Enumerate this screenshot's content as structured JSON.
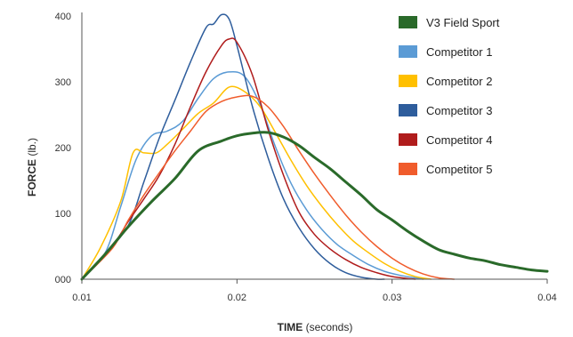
{
  "chart_data": {
    "type": "line",
    "title": "",
    "xlabel": {
      "bold": "TIME",
      "rest": " (seconds)"
    },
    "ylabel": {
      "bold": "FORCE",
      "rest": " (lb.)"
    },
    "xlim": [
      0.01,
      0.04
    ],
    "ylim": [
      0,
      400
    ],
    "x_ticks": [
      0.01,
      0.02,
      0.03,
      0.04
    ],
    "x_tick_labels": [
      "0.01",
      "0.02",
      "0.03",
      "0.04"
    ],
    "y_ticks": [
      0,
      100,
      200,
      300,
      400
    ],
    "y_tick_labels": [
      "000",
      "100",
      "200",
      "300",
      "400"
    ],
    "grid": false,
    "legend_position": "right",
    "series": [
      {
        "name": "V3 Field Sport",
        "color": "#2a6a2a",
        "width": 3,
        "x": [
          0.01,
          0.0115,
          0.013,
          0.0145,
          0.016,
          0.0175,
          0.019,
          0.02,
          0.021,
          0.022,
          0.023,
          0.024,
          0.025,
          0.026,
          0.027,
          0.028,
          0.029,
          0.03,
          0.031,
          0.032,
          0.033,
          0.034,
          0.035,
          0.036,
          0.037,
          0.038,
          0.039,
          0.04
        ],
        "y": [
          0,
          38,
          80,
          118,
          153,
          195,
          210,
          218,
          222,
          223,
          216,
          203,
          185,
          168,
          148,
          128,
          106,
          90,
          73,
          58,
          45,
          38,
          32,
          28,
          22,
          18,
          14,
          12
        ]
      },
      {
        "name": "Competitor 1",
        "color": "#5b9bd5",
        "width": 1.5,
        "x": [
          0.01,
          0.0115,
          0.0125,
          0.0135,
          0.0145,
          0.0155,
          0.0165,
          0.0175,
          0.0185,
          0.0195,
          0.0205,
          0.0215,
          0.0225,
          0.0235,
          0.0245,
          0.0255,
          0.0265,
          0.0275,
          0.0285,
          0.0295,
          0.0305,
          0.0315,
          0.032
        ],
        "y": [
          0,
          40,
          110,
          182,
          218,
          225,
          240,
          275,
          305,
          315,
          308,
          265,
          200,
          145,
          105,
          75,
          52,
          36,
          22,
          12,
          6,
          2,
          0
        ]
      },
      {
        "name": "Competitor 2",
        "color": "#ffc000",
        "width": 1.5,
        "x": [
          0.01,
          0.0112,
          0.0125,
          0.0133,
          0.014,
          0.0148,
          0.0155,
          0.0165,
          0.0175,
          0.0185,
          0.0195,
          0.0205,
          0.0215,
          0.0225,
          0.0235,
          0.0245,
          0.0255,
          0.0265,
          0.0275,
          0.0285,
          0.0295,
          0.0305,
          0.0315,
          0.0325
        ],
        "y": [
          0,
          48,
          118,
          192,
          192,
          192,
          205,
          228,
          252,
          268,
          292,
          285,
          262,
          222,
          180,
          142,
          110,
          82,
          58,
          40,
          24,
          12,
          4,
          0
        ]
      },
      {
        "name": "Competitor 3",
        "color": "#2e5d9c",
        "width": 1.5,
        "x": [
          0.01,
          0.0115,
          0.013,
          0.014,
          0.015,
          0.016,
          0.017,
          0.018,
          0.0185,
          0.019,
          0.0195,
          0.02,
          0.021,
          0.022,
          0.023,
          0.024,
          0.025,
          0.026,
          0.027,
          0.028,
          0.029,
          0.0295
        ],
        "y": [
          0,
          38,
          82,
          148,
          215,
          272,
          330,
          382,
          388,
          402,
          395,
          355,
          262,
          185,
          122,
          78,
          46,
          24,
          10,
          3,
          0,
          0
        ]
      },
      {
        "name": "Competitor 4",
        "color": "#b01c1c",
        "width": 1.5,
        "x": [
          0.01,
          0.012,
          0.013,
          0.014,
          0.015,
          0.016,
          0.017,
          0.018,
          0.019,
          0.0195,
          0.02,
          0.021,
          0.022,
          0.023,
          0.024,
          0.025,
          0.026,
          0.027,
          0.028,
          0.029,
          0.03,
          0.031,
          0.0315
        ],
        "y": [
          0,
          52,
          88,
          122,
          158,
          205,
          262,
          315,
          355,
          365,
          360,
          310,
          228,
          158,
          102,
          68,
          46,
          30,
          18,
          10,
          4,
          1,
          0
        ]
      },
      {
        "name": "Competitor 5",
        "color": "#f05c2c",
        "width": 1.5,
        "x": [
          0.01,
          0.012,
          0.013,
          0.014,
          0.015,
          0.016,
          0.017,
          0.018,
          0.019,
          0.02,
          0.021,
          0.022,
          0.023,
          0.024,
          0.025,
          0.026,
          0.027,
          0.028,
          0.029,
          0.03,
          0.031,
          0.032,
          0.033,
          0.034
        ],
        "y": [
          0,
          48,
          90,
          128,
          162,
          195,
          225,
          255,
          270,
          277,
          278,
          262,
          232,
          195,
          160,
          128,
          98,
          72,
          50,
          32,
          18,
          8,
          2,
          0
        ]
      }
    ]
  }
}
